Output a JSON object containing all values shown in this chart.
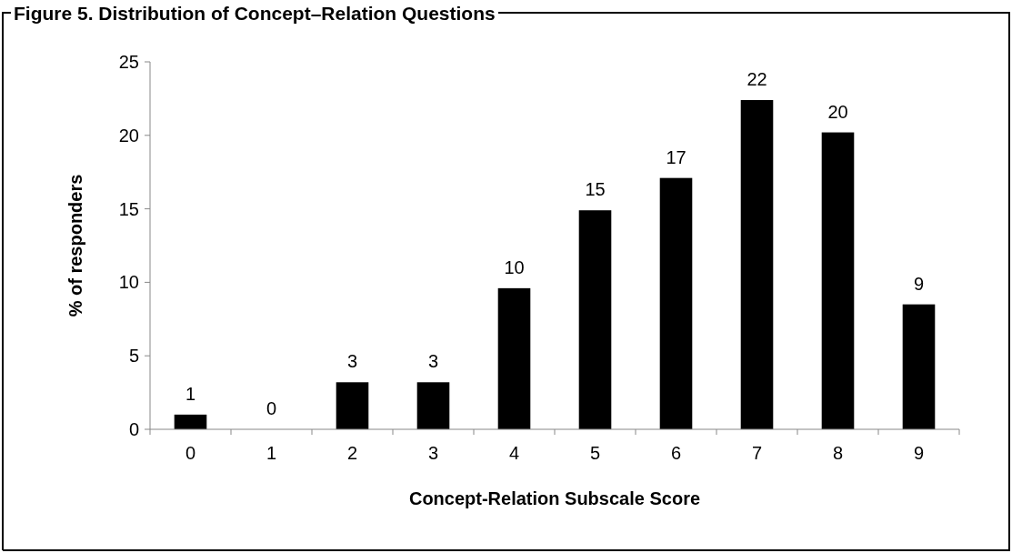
{
  "chart_data": {
    "type": "bar",
    "title": "Figure 5.  Distribution of Concept–Relation Questions",
    "xlabel": "Concept-Relation Subscale Score",
    "ylabel": "% of responders",
    "categories": [
      "0",
      "1",
      "2",
      "3",
      "4",
      "5",
      "6",
      "7",
      "8",
      "9"
    ],
    "values": [
      1.0,
      0,
      3.2,
      3.2,
      9.6,
      14.9,
      17.1,
      22.4,
      20.2,
      8.5
    ],
    "value_labels": [
      "1",
      "0",
      "3",
      "3",
      "10",
      "15",
      "17",
      "22",
      "20",
      "9"
    ],
    "color": "#000000",
    "ylim": [
      0,
      25
    ],
    "yticks": [
      0,
      5,
      10,
      15,
      20,
      25
    ],
    "grid": false
  }
}
